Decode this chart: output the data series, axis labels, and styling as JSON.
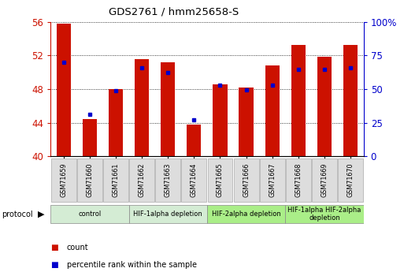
{
  "title": "GDS2761 / hmm25658-S",
  "samples": [
    "GSM71659",
    "GSM71660",
    "GSM71661",
    "GSM71662",
    "GSM71663",
    "GSM71664",
    "GSM71665",
    "GSM71666",
    "GSM71667",
    "GSM71668",
    "GSM71669",
    "GSM71670"
  ],
  "red_values": [
    55.8,
    44.4,
    48.0,
    51.6,
    51.2,
    43.8,
    48.6,
    48.2,
    50.8,
    53.2,
    51.8,
    53.2
  ],
  "blue_values": [
    51.2,
    45.0,
    47.8,
    50.5,
    50.0,
    44.3,
    48.5,
    47.9,
    48.5,
    50.3,
    50.3,
    50.5
  ],
  "ymin": 40,
  "ymax": 56,
  "yticks_left": [
    40,
    44,
    48,
    52,
    56
  ],
  "yticks_right": [
    0,
    25,
    50,
    75,
    100
  ],
  "bar_color": "#cc1100",
  "dot_color": "#0000cc",
  "protocol_groups": [
    {
      "label": "control",
      "start": 0,
      "end": 2,
      "color": "#d4ecd4"
    },
    {
      "label": "HIF-1alpha depletion",
      "start": 3,
      "end": 5,
      "color": "#d4ecd4"
    },
    {
      "label": "HIF-2alpha depletion",
      "start": 6,
      "end": 8,
      "color": "#aaee88"
    },
    {
      "label": "HIF-1alpha HIF-2alpha\ndepletion",
      "start": 9,
      "end": 11,
      "color": "#aaee88"
    }
  ],
  "left_axis_color": "#cc1100",
  "right_axis_color": "#0000cc",
  "legend_count_color": "#cc1100",
  "legend_pct_color": "#0000cc"
}
